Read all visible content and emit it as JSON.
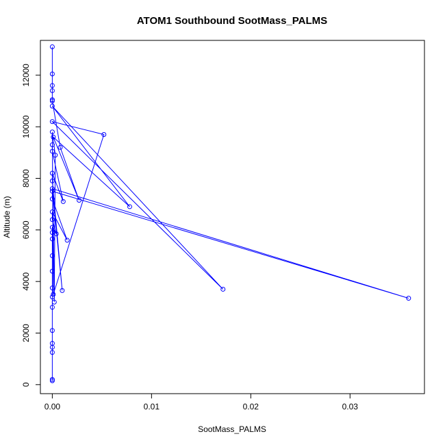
{
  "chart_data": {
    "type": "line",
    "title": "ATOM1 Southbound SootMass_PALMS",
    "xlabel": "SootMass_PALMS",
    "ylabel": "Altitude (m)",
    "xlim": [
      -0.0012,
      0.0375
    ],
    "ylim": [
      -350,
      13350
    ],
    "x_ticks": [
      0,
      0.01,
      0.02,
      0.03
    ],
    "x_tick_labels": [
      "0.00",
      "0.01",
      "0.02",
      "0.03"
    ],
    "y_ticks": [
      0,
      2000,
      4000,
      6000,
      8000,
      10000,
      12000
    ],
    "y_tick_labels": [
      "0",
      "2000",
      "4000",
      "6000",
      "8000",
      "10000",
      "12000"
    ],
    "grid": false,
    "color": "#0000ff",
    "series": [
      {
        "points": [
          [
            0,
            13100
          ],
          [
            0,
            12050
          ],
          [
            0,
            11600
          ],
          [
            0,
            11400
          ],
          [
            0,
            11050
          ],
          [
            0,
            11000
          ],
          [
            0.0008,
            9200
          ],
          [
            0.0027,
            7150
          ],
          [
            0.0001,
            9600
          ],
          [
            0.0078,
            6900
          ],
          [
            0,
            10800
          ],
          [
            0.0172,
            3700
          ],
          [
            0,
            10200
          ],
          [
            0.0052,
            9700
          ],
          [
            0.0001,
            3500
          ],
          [
            0,
            9800
          ],
          [
            0.0003,
            8900
          ],
          [
            0.0002,
            3200
          ],
          [
            0,
            9300
          ],
          [
            0,
            9050
          ],
          [
            0.0011,
            7100
          ],
          [
            0,
            8200
          ],
          [
            0,
            7900
          ],
          [
            0.001,
            3650
          ],
          [
            0,
            7600
          ],
          [
            0.0359,
            3350
          ],
          [
            0,
            7500
          ],
          [
            0,
            7200
          ],
          [
            0.0015,
            5600
          ],
          [
            0,
            6700
          ],
          [
            0,
            6400
          ],
          [
            0.0004,
            5850
          ],
          [
            0,
            6100
          ],
          [
            0,
            5900
          ],
          [
            0,
            5650
          ],
          [
            0,
            5000
          ],
          [
            0,
            4400
          ],
          [
            0,
            3750
          ],
          [
            0,
            3400
          ],
          [
            0,
            3000
          ],
          [
            0,
            2100
          ],
          [
            0,
            1600
          ],
          [
            0,
            1450
          ],
          [
            0,
            1250
          ],
          [
            0,
            200
          ],
          [
            0,
            150
          ]
        ]
      }
    ]
  }
}
